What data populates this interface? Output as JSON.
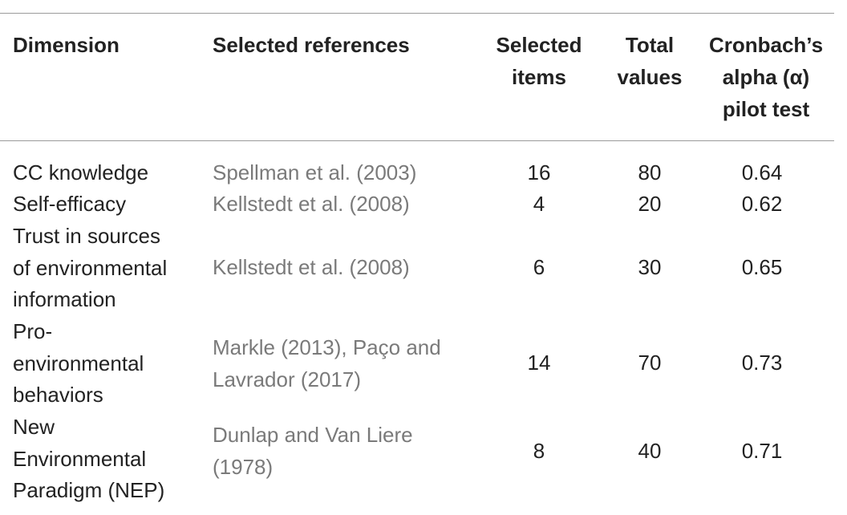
{
  "table": {
    "headers": {
      "dimension": "Dimension",
      "references": "Selected references",
      "items": "Selected\nitems",
      "total": "Total\nvalues",
      "alpha": "Cronbach’s\nalpha (α)\npilot test"
    },
    "rows": [
      {
        "dimension": "CC knowledge",
        "references": "Spellman et al. (2003)",
        "items": "16",
        "total": "80",
        "alpha": "0.64"
      },
      {
        "dimension": "Self-efficacy",
        "references": "Kellstedt et al. (2008)",
        "items": "4",
        "total": "20",
        "alpha": "0.62"
      },
      {
        "dimension": "Trust in sources\nof environmental\ninformation",
        "references": "Kellstedt et al. (2008)",
        "items": "6",
        "total": "30",
        "alpha": "0.65"
      },
      {
        "dimension": "Pro-\nenvironmental\nbehaviors",
        "references": "Markle (2013), Paço and\nLavrador (2017)",
        "items": "14",
        "total": "70",
        "alpha": "0.73"
      },
      {
        "dimension": "New\nEnvironmental\nParadigm (NEP)",
        "references": "Dunlap and Van Liere\n(1978)",
        "items": "8",
        "total": "40",
        "alpha": "0.71"
      }
    ]
  }
}
